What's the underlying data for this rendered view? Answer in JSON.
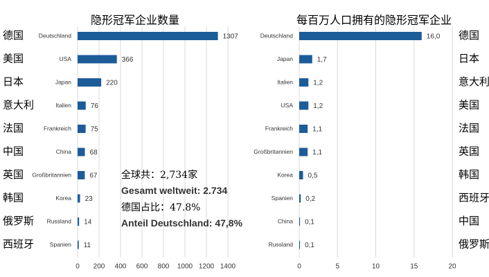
{
  "chart_data": [
    {
      "type": "bar",
      "orientation": "horizontal",
      "title": "隐形冠军企业数量",
      "categories": [
        "Deutschland",
        "USA",
        "Japan",
        "Italien",
        "Frankreich",
        "China",
        "Großbritannien",
        "Korea",
        "Russland",
        "Spanien"
      ],
      "translations": [
        "德国",
        "美国",
        "日本",
        "意大利",
        "法国",
        "中国",
        "英国",
        "韩国",
        "俄罗斯",
        "西班牙"
      ],
      "values": [
        1307,
        366,
        220,
        76,
        75,
        68,
        67,
        23,
        14,
        11
      ],
      "color": "#1c5c99",
      "xlim": [
        0,
        1400
      ],
      "xticks": [
        0,
        200,
        400,
        600,
        800,
        1000,
        1200,
        1400
      ],
      "grid": true,
      "annotations": [
        "全球共：2,734家",
        "Gesamt weltweit: 2.734",
        "德国占比：47.8%",
        "Anteil Deutschland: 47,8%"
      ]
    },
    {
      "type": "bar",
      "orientation": "horizontal",
      "title": "每百万人口拥有的隐形冠军企业",
      "categories": [
        "Deutschland",
        "Japan",
        "Italien",
        "USA",
        "Frankreich",
        "Großbritannien",
        "Korea",
        "Spanien",
        "China",
        "Russland"
      ],
      "translations": [
        "德国",
        "日本",
        "意大利",
        "美国",
        "法国",
        "英国",
        "韩国",
        "西班牙",
        "中国",
        "俄罗斯"
      ],
      "values": [
        16.0,
        1.7,
        1.2,
        1.2,
        1.1,
        1.1,
        0.5,
        0.2,
        0.1,
        0.1
      ],
      "value_labels": [
        "16,0",
        "1,7",
        "1,2",
        "1,2",
        "1,1",
        "1,1",
        "0,5",
        "0,2",
        "0,1",
        "0,1"
      ],
      "color": "#1c5c99",
      "xlim": [
        0,
        20
      ],
      "xticks": [
        0,
        5,
        10,
        15,
        20
      ],
      "grid": true
    }
  ]
}
